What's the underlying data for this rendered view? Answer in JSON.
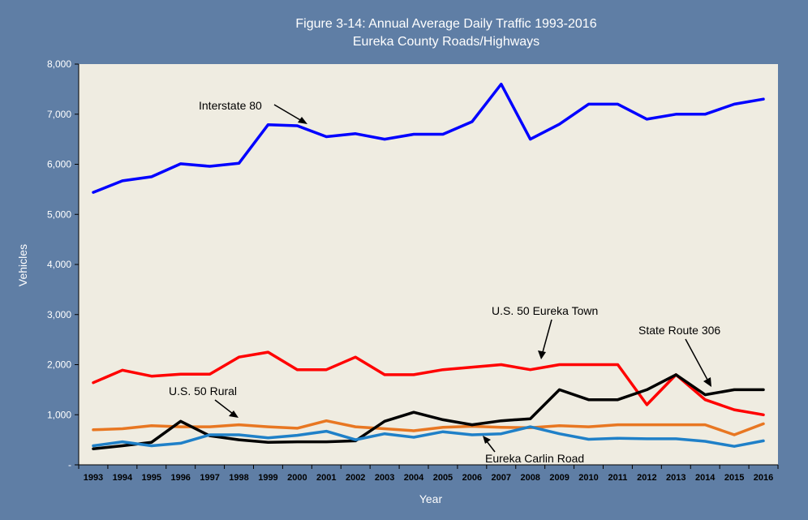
{
  "chart_data": {
    "type": "line",
    "title": "Figure 3-14: Annual Average Daily Traffic 1993-2016",
    "subtitle": "Eureka County Roads/Highways",
    "xlabel": "Year",
    "ylabel": "Vehicles",
    "ylim": [
      0,
      8000
    ],
    "yticks": [
      "-",
      "1,000",
      "2,000",
      "3,000",
      "4,000",
      "5,000",
      "6,000",
      "7,000",
      "8,000"
    ],
    "grid": false,
    "categories": [
      "1993",
      "1994",
      "1995",
      "1996",
      "1997",
      "1998",
      "1999",
      "2000",
      "2001",
      "2002",
      "2003",
      "2004",
      "2005",
      "2006",
      "2007",
      "2008",
      "2009",
      "2010",
      "2011",
      "2012",
      "2013",
      "2014",
      "2015",
      "2016"
    ],
    "series": [
      {
        "name": "Interstate 80",
        "color": "#0000ff",
        "values": [
          5440,
          5670,
          5750,
          6010,
          5960,
          6020,
          6790,
          6770,
          6550,
          6610,
          6500,
          6600,
          6600,
          6850,
          7600,
          6500,
          6800,
          7200,
          7200,
          6900,
          7000,
          7000,
          7200,
          7300
        ]
      },
      {
        "name": "U.S. 50 Eureka Town",
        "color": "#ff0000",
        "values": [
          1640,
          1890,
          1770,
          1810,
          1810,
          2150,
          2250,
          1900,
          1900,
          2150,
          1800,
          1800,
          1900,
          1950,
          2000,
          1900,
          2000,
          2000,
          2000,
          1200,
          1800,
          1300,
          1100,
          1000
        ]
      },
      {
        "name": "U.S. 50 Rural",
        "color": "#e87722",
        "values": [
          700,
          720,
          780,
          760,
          760,
          800,
          760,
          730,
          880,
          760,
          720,
          680,
          750,
          770,
          750,
          740,
          780,
          760,
          800,
          800,
          800,
          800,
          600,
          820
        ]
      },
      {
        "name": "State Route 306",
        "color": "#000000",
        "values": [
          320,
          380,
          450,
          870,
          580,
          500,
          450,
          460,
          460,
          480,
          870,
          1050,
          900,
          800,
          880,
          920,
          1500,
          1300,
          1300,
          1500,
          1800,
          1400,
          1500,
          1500
        ]
      },
      {
        "name": "Eureka Carlin Road",
        "color": "#1f80c8",
        "values": [
          380,
          460,
          380,
          430,
          600,
          600,
          540,
          590,
          670,
          500,
          620,
          550,
          660,
          600,
          620,
          760,
          620,
          510,
          530,
          520,
          520,
          470,
          370,
          480
        ]
      }
    ],
    "annotations": [
      "Interstate 80",
      "U.S. 50 Eureka Town",
      "State Route 306",
      "U.S. 50 Rural",
      "Eureka Carlin Road"
    ]
  },
  "colors": {
    "background": "#5f7ea5",
    "plot_area": "#efece1"
  }
}
